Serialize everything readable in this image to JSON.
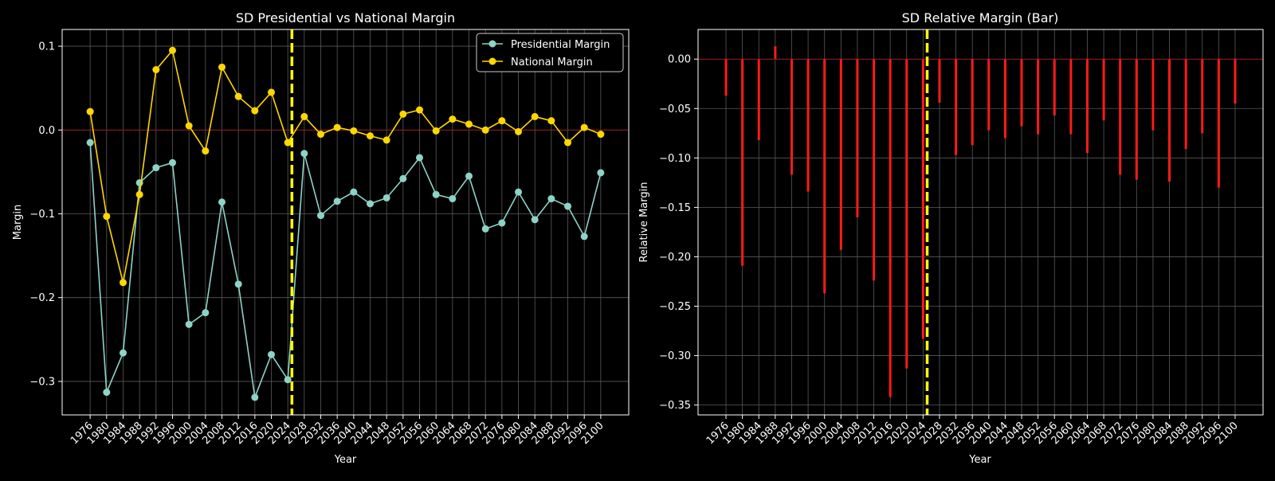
{
  "colors": {
    "background": "#000000",
    "presidential": "#8dd3c7",
    "national": "#ffd700",
    "bar": "#ff1a1a",
    "zero_line": "#cc0000",
    "divider": "#ffff00",
    "grid": "#5a5a5a",
    "axis": "#ffffff"
  },
  "chart_data": [
    {
      "type": "line",
      "title": "SD Presidential vs National Margin",
      "xlabel": "Year",
      "ylabel": "Margin",
      "x": [
        1976,
        1980,
        1984,
        1988,
        1992,
        1996,
        2000,
        2004,
        2008,
        2012,
        2016,
        2020,
        2024,
        2028,
        2032,
        2036,
        2040,
        2044,
        2048,
        2052,
        2056,
        2060,
        2064,
        2068,
        2072,
        2076,
        2080,
        2084,
        2088,
        2092,
        2096,
        2100
      ],
      "xlim": [
        1969.2,
        2106.8
      ],
      "ylim": [
        -0.34,
        0.12
      ],
      "yticks": [
        0.1,
        0.0,
        -0.1,
        -0.2,
        -0.3
      ],
      "ytick_labels": [
        "0.1",
        "0.0",
        "−0.1",
        "−0.2",
        "−0.3"
      ],
      "divider_x": 2025,
      "zero_line": 0,
      "grid": true,
      "legend_position": "top-right",
      "series": [
        {
          "name": "Presidential Margin",
          "color_key": "presidential",
          "values": [
            -0.015,
            -0.313,
            -0.266,
            -0.063,
            -0.045,
            -0.039,
            -0.232,
            -0.218,
            -0.086,
            -0.184,
            -0.319,
            -0.268,
            -0.298,
            -0.028,
            -0.102,
            -0.085,
            -0.074,
            -0.088,
            -0.081,
            -0.058,
            -0.033,
            -0.077,
            -0.082,
            -0.055,
            -0.118,
            -0.111,
            -0.074,
            -0.107,
            -0.082,
            -0.091,
            -0.127,
            -0.051
          ]
        },
        {
          "name": "National Margin",
          "color_key": "national",
          "values": [
            0.022,
            -0.103,
            -0.182,
            -0.077,
            0.072,
            0.095,
            0.005,
            -0.025,
            0.075,
            0.04,
            0.023,
            0.045,
            -0.015,
            0.016,
            -0.005,
            0.003,
            -0.001,
            -0.007,
            -0.012,
            0.019,
            0.024,
            -0.001,
            0.013,
            0.007,
            0.0,
            0.011,
            -0.002,
            0.016,
            0.011,
            -0.015,
            0.003,
            -0.005
          ]
        }
      ]
    },
    {
      "type": "bar",
      "title": "SD Relative Margin (Bar)",
      "xlabel": "Year",
      "ylabel": "Relative Margin",
      "x": [
        1976,
        1980,
        1984,
        1988,
        1992,
        1996,
        2000,
        2004,
        2008,
        2012,
        2016,
        2020,
        2024,
        2028,
        2032,
        2036,
        2040,
        2044,
        2048,
        2052,
        2056,
        2060,
        2064,
        2068,
        2072,
        2076,
        2080,
        2084,
        2088,
        2092,
        2096,
        2100
      ],
      "xlim": [
        1969.2,
        2106.8
      ],
      "ylim": [
        -0.36,
        0.03
      ],
      "yticks": [
        0.0,
        -0.05,
        -0.1,
        -0.15,
        -0.2,
        -0.25,
        -0.3,
        -0.35
      ],
      "ytick_labels": [
        "0.00",
        "−0.05",
        "−0.10",
        "−0.15",
        "−0.20",
        "−0.25",
        "−0.30",
        "−0.35"
      ],
      "divider_x": 2025,
      "zero_line": 0,
      "grid": true,
      "values": [
        -0.037,
        -0.209,
        -0.082,
        0.013,
        -0.117,
        -0.134,
        -0.237,
        -0.193,
        -0.16,
        -0.224,
        -0.342,
        -0.313,
        -0.283,
        -0.044,
        -0.097,
        -0.087,
        -0.072,
        -0.08,
        -0.068,
        -0.076,
        -0.057,
        -0.076,
        -0.095,
        -0.062,
        -0.117,
        -0.122,
        -0.072,
        -0.124,
        -0.091,
        -0.075,
        -0.13,
        -0.045
      ]
    }
  ]
}
